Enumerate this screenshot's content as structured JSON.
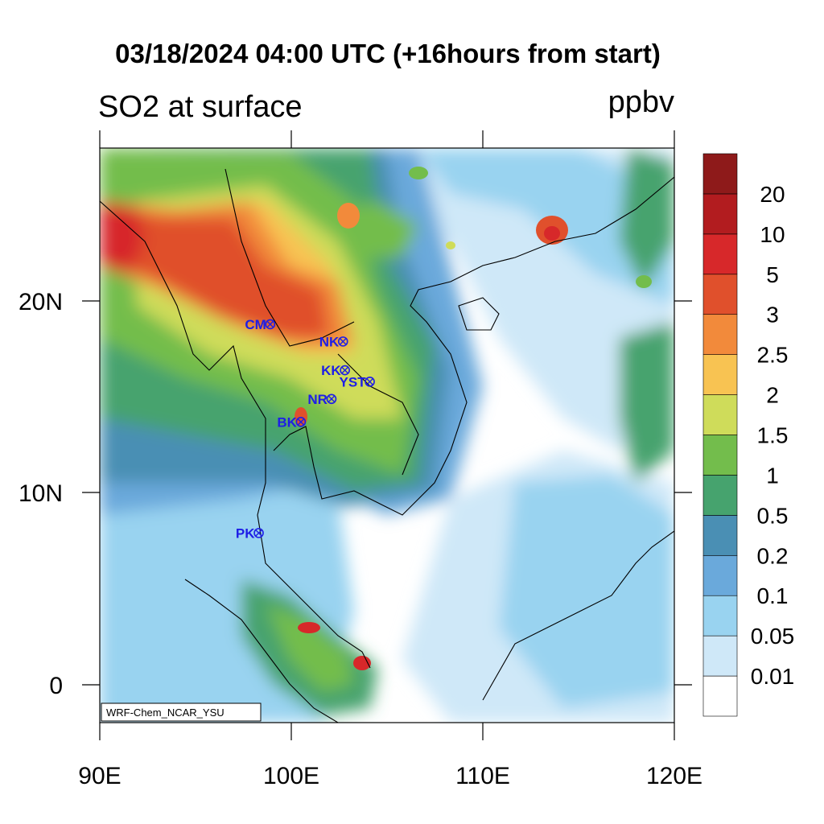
{
  "header": {
    "title": "03/18/2024 04:00 UTC (+16hours from start)",
    "field": "SO2 at surface",
    "units": "ppbv"
  },
  "map": {
    "lon_range": [
      90,
      120
    ],
    "lat_range": [
      -2,
      28
    ],
    "x_ticks": [
      "90E",
      "100E",
      "110E",
      "120E"
    ],
    "y_ticks": [
      "20N",
      "10N",
      "0"
    ],
    "credit": "WRF-Chem_NCAR_YSU"
  },
  "stations": [
    {
      "id": "CM",
      "label": "CM",
      "lon": 98.9,
      "lat": 18.8
    },
    {
      "id": "NK",
      "label": "NK",
      "lon": 102.7,
      "lat": 17.9
    },
    {
      "id": "KK",
      "label": "KK",
      "lon": 102.8,
      "lat": 16.4
    },
    {
      "id": "YST",
      "label": "YST",
      "lon": 104.1,
      "lat": 15.8
    },
    {
      "id": "NR",
      "label": "NR",
      "lon": 102.1,
      "lat": 14.9
    },
    {
      "id": "BK",
      "label": "BK",
      "lon": 100.5,
      "lat": 13.7
    },
    {
      "id": "PK",
      "label": "PK",
      "lon": 98.3,
      "lat": 7.9
    }
  ],
  "colorbar": {
    "levels": [
      "0.01",
      "0.05",
      "0.1",
      "0.2",
      "0.5",
      "1",
      "1.5",
      "2",
      "2.5",
      "3",
      "5",
      "10",
      "20"
    ],
    "colors": [
      "#ffffff",
      "#cfe8f8",
      "#99d3f0",
      "#6aa9db",
      "#4a8fb4",
      "#46a36e",
      "#73bd4c",
      "#cfdc5a",
      "#f8c352",
      "#f28a3b",
      "#e0502c",
      "#d7282a",
      "#b21c1f",
      "#8e1a1a"
    ]
  }
}
